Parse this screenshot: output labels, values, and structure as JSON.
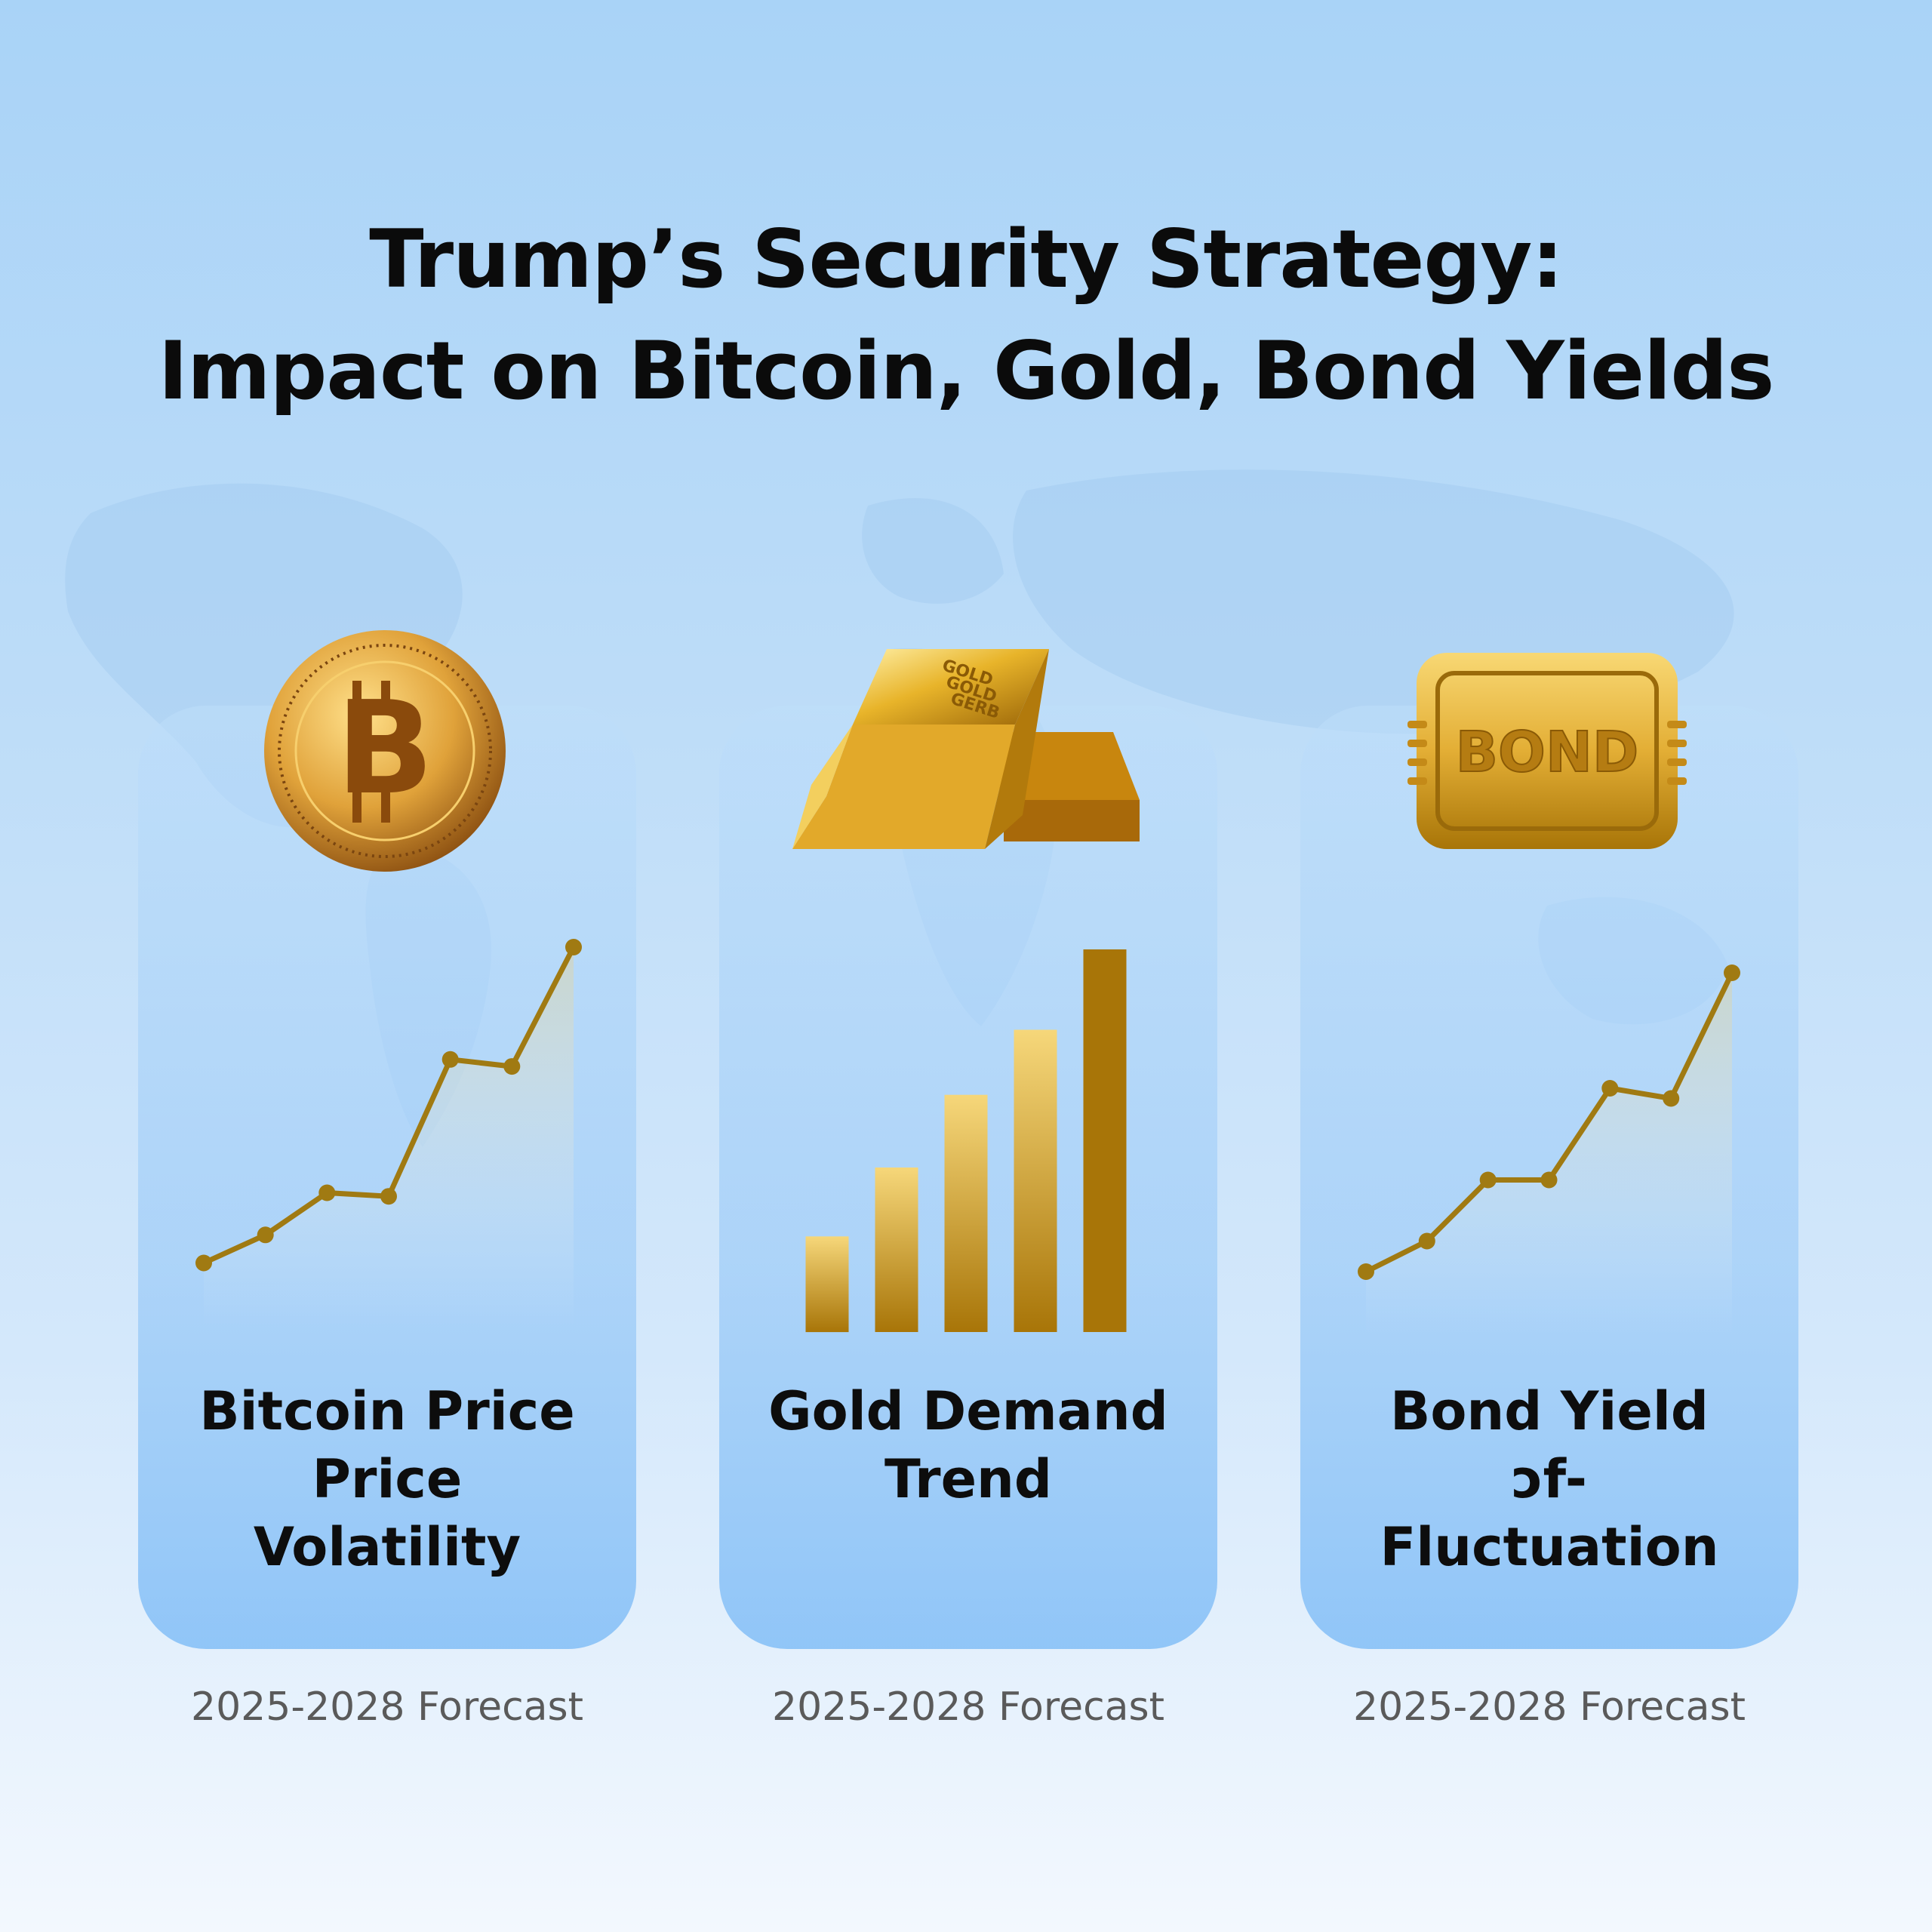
{
  "title": {
    "line1": "Trump’s Security Strategy:",
    "line2": "Impact on Bitcoin, Gold, Bond Yields"
  },
  "colors": {
    "gold_line": "#a07a12",
    "gold_light": "#f6d77a",
    "gold_dark": "#a87508"
  },
  "icons": {
    "card1": "bitcoin-coin-icon",
    "card2": "gold-bars-icon",
    "card3": "bond-plate-icon"
  },
  "gold_bar_text": [
    "GOLD",
    "GOLD",
    "GERB"
  ],
  "bond_icon_text": "BOND",
  "cards": [
    {
      "label_lines": [
        "Bitcoin Price",
        "Price",
        "Volatility"
      ],
      "footer": "2025-2028 Forecast"
    },
    {
      "label_lines": [
        "Gold Demand",
        "Trend"
      ],
      "footer": "2025-2028 Forecast"
    },
    {
      "label_lines": [
        "Bond Yield",
        "ɔf-",
        "Fluctuation"
      ],
      "footer": "2025-2028 Forecast"
    }
  ],
  "chart_data": [
    {
      "type": "line",
      "x": [
        1,
        2,
        3,
        4,
        5,
        6,
        7
      ],
      "y": [
        1.0,
        1.8,
        3.0,
        2.9,
        6.8,
        6.6,
        10.0
      ],
      "ylim": [
        0,
        10
      ]
    },
    {
      "type": "bar",
      "values": [
        2.5,
        4.3,
        6.2,
        7.9,
        10.0
      ],
      "ylim": [
        0,
        10
      ]
    },
    {
      "type": "line",
      "x": [
        1,
        2,
        3,
        4,
        5,
        6,
        7
      ],
      "y": [
        1.0,
        1.9,
        3.7,
        3.7,
        6.4,
        6.1,
        9.8
      ],
      "ylim": [
        0,
        10
      ]
    }
  ]
}
